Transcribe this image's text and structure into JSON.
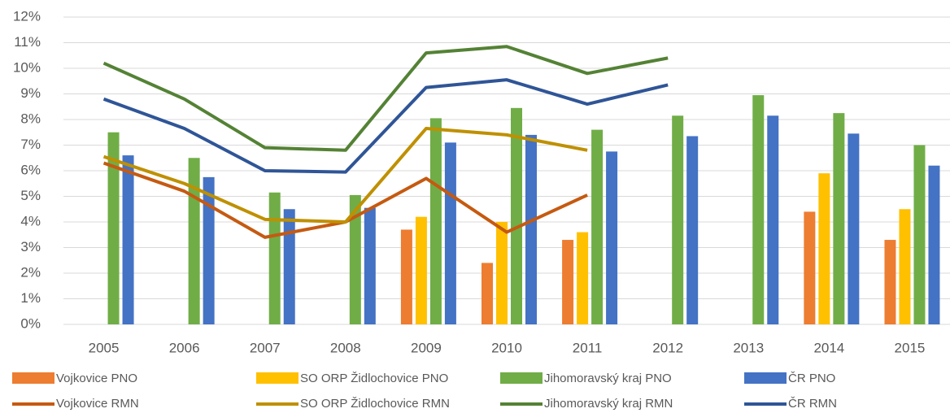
{
  "chart_data": {
    "type": "bar",
    "categories": [
      "2005",
      "2006",
      "2007",
      "2008",
      "2009",
      "2010",
      "2011",
      "2012",
      "2013",
      "2014",
      "2015"
    ],
    "series": [
      {
        "name": "Vojkovice PNO",
        "type": "bar",
        "color": "#ed7d31",
        "values": [
          null,
          null,
          null,
          null,
          3.7,
          2.4,
          3.3,
          null,
          null,
          4.4,
          3.3
        ]
      },
      {
        "name": "SO ORP Židlochovice PNO",
        "type": "bar",
        "color": "#ffc000",
        "values": [
          null,
          null,
          null,
          null,
          4.2,
          4.0,
          3.6,
          null,
          null,
          5.9,
          4.5
        ]
      },
      {
        "name": "Jihomoravský kraj PNO",
        "type": "bar",
        "color": "#70ad47",
        "values": [
          7.5,
          6.5,
          5.15,
          5.05,
          8.05,
          8.45,
          7.6,
          8.15,
          8.95,
          8.25,
          7.0
        ]
      },
      {
        "name": "ČR PNO",
        "type": "bar",
        "color": "#4472c4",
        "values": [
          6.6,
          5.75,
          4.5,
          4.55,
          7.1,
          7.4,
          6.75,
          7.35,
          8.15,
          7.45,
          6.2
        ]
      },
      {
        "name": "Vojkovice RMN",
        "type": "line",
        "color": "#c55a11",
        "values": [
          6.3,
          5.2,
          3.4,
          4.0,
          5.7,
          3.6,
          5.05,
          null,
          null,
          null,
          null
        ]
      },
      {
        "name": "SO ORP Židlochovice RMN",
        "type": "line",
        "color": "#bf9000",
        "values": [
          6.55,
          5.5,
          4.1,
          4.0,
          7.65,
          7.4,
          6.8,
          null,
          null,
          null,
          null
        ]
      },
      {
        "name": "Jihomoravský kraj RMN",
        "type": "line",
        "color": "#548235",
        "values": [
          10.2,
          8.8,
          6.9,
          6.8,
          10.6,
          10.85,
          9.8,
          10.4,
          null,
          null,
          null
        ]
      },
      {
        "name": "ČR RMN",
        "type": "line",
        "color": "#2f5597",
        "values": [
          8.8,
          7.65,
          6.0,
          5.95,
          9.25,
          9.55,
          8.6,
          9.35,
          null,
          null,
          null
        ]
      }
    ],
    "ylim": [
      0,
      12
    ],
    "yticks": [
      {
        "value": 0,
        "label": "0%"
      },
      {
        "value": 1,
        "label": "1%"
      },
      {
        "value": 2,
        "label": "2%"
      },
      {
        "value": 3,
        "label": "3%"
      },
      {
        "value": 4,
        "label": "4%"
      },
      {
        "value": 5,
        "label": "5%"
      },
      {
        "value": 6,
        "label": "6%"
      },
      {
        "value": 7,
        "label": "7%"
      },
      {
        "value": 8,
        "label": "8%"
      },
      {
        "value": 9,
        "label": "9%"
      },
      {
        "value": 10,
        "label": "10%"
      },
      {
        "value": 11,
        "label": "11%"
      },
      {
        "value": 12,
        "label": "12%"
      }
    ],
    "grid": true,
    "legend": "bottom"
  }
}
